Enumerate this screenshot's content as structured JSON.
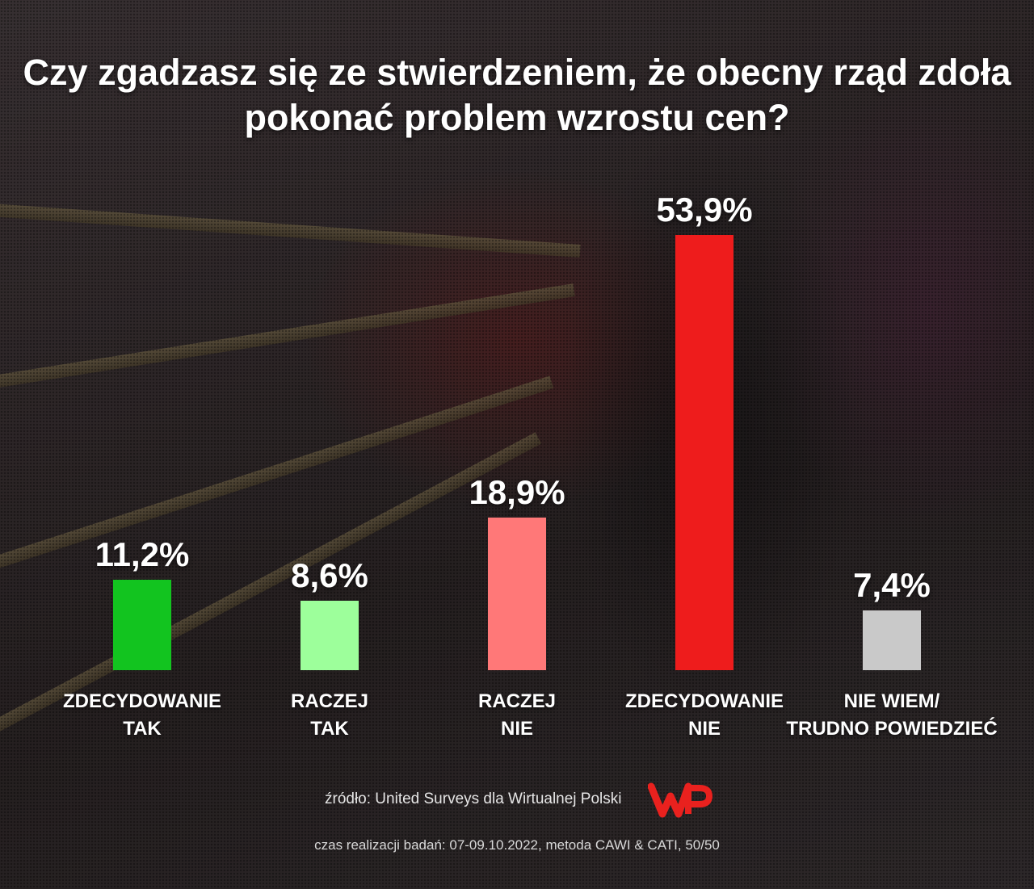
{
  "chart_data": {
    "type": "bar",
    "title": "Czy zgadzasz się ze stwierdzeniem, że obecny rząd zdoła pokonać problem wzrostu cen?",
    "categories": [
      [
        "ZDECYDOWANIE",
        "TAK"
      ],
      [
        "RACZEJ",
        "TAK"
      ],
      [
        "RACZEJ",
        "NIE"
      ],
      [
        "ZDECYDOWANIE",
        "NIE"
      ],
      [
        "NIE WIEM/",
        "TRUDNO POWIEDZIEĆ"
      ]
    ],
    "values": [
      11.2,
      8.6,
      18.9,
      53.9,
      7.4
    ],
    "value_labels": [
      "11,2%",
      "8,6%",
      "18,9%",
      "53,9%",
      "7,4%"
    ],
    "colors": [
      "#12c41f",
      "#9dff9b",
      "#ff7878",
      "#ee1c1c",
      "#c9c9c9"
    ],
    "unit": "%",
    "grid": false,
    "legend": "none"
  },
  "source": "źródło: United Surveys dla Wirtualnej Polski",
  "footnote": "czas realizacji badań: 07-09.10.2022, metoda CAWI & CATI, 50/50",
  "logo_icon": "wp-logo-icon",
  "logo_color": "#e9211e"
}
